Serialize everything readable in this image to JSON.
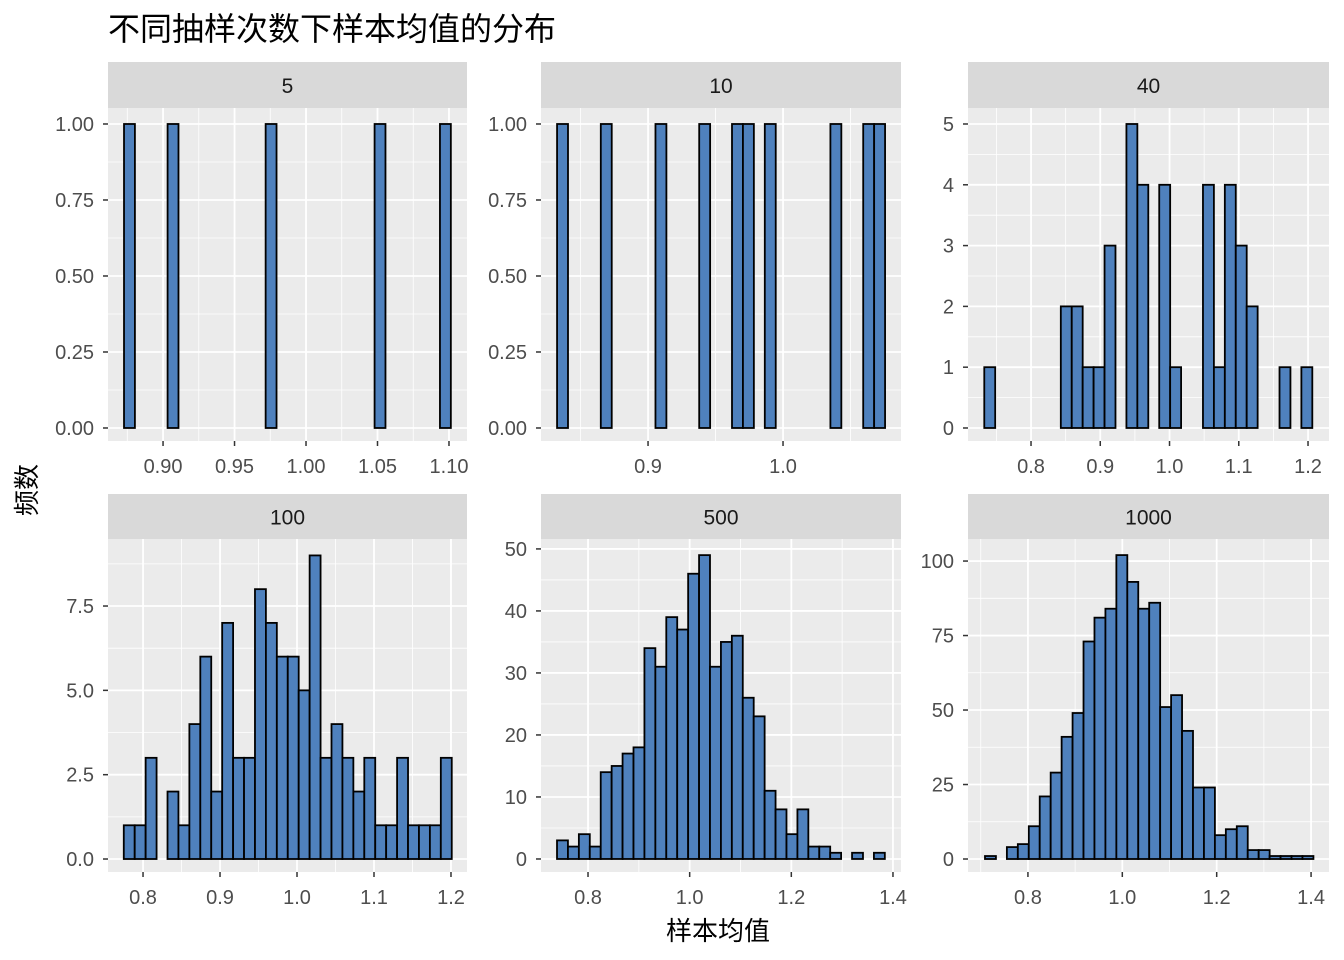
{
  "chart_data": {
    "type": "bar",
    "title": "不同抽样次数下样本均值的分布",
    "xlabel": "样本均值",
    "ylabel": "频数",
    "fill_color": "#4F81BD",
    "stroke_color": "#000000",
    "panel_background": "#EBEBEB",
    "strip_background": "#D9D9D9",
    "grid": true,
    "facets": [
      {
        "label": "5",
        "bin_start": 0.8727,
        "bin_width": 0.00762,
        "counts": [
          1,
          0,
          0,
          0,
          1,
          0,
          0,
          0,
          0,
          0,
          0,
          0,
          0,
          1,
          0,
          0,
          0,
          0,
          0,
          0,
          0,
          0,
          0,
          1,
          0,
          0,
          0,
          0,
          0,
          1
        ],
        "xlim": [
          0.8615,
          1.1126
        ],
        "ylim": [
          -0.0428,
          1.0526
        ],
        "xticks": [
          0.9,
          0.95,
          1.0,
          1.05,
          1.1
        ],
        "xtick_labels": [
          "0.90",
          "0.95",
          "1.00",
          "1.05",
          "1.10"
        ],
        "yticks": [
          0,
          0.25,
          0.5,
          0.75,
          1.0
        ],
        "ytick_labels": [
          "0.00",
          "0.25",
          "0.50",
          "0.75",
          "1.00"
        ]
      },
      {
        "label": "10",
        "bin_start": 0.8326,
        "bin_width": 0.0081,
        "counts": [
          1,
          0,
          0,
          0,
          1,
          0,
          0,
          0,
          0,
          1,
          0,
          0,
          0,
          1,
          0,
          0,
          1,
          1,
          0,
          1,
          0,
          0,
          0,
          0,
          0,
          1,
          0,
          0,
          1,
          1
        ],
        "xlim": [
          0.8207,
          1.0874
        ],
        "ylim": [
          -0.0428,
          1.0526
        ],
        "xticks": [
          0.9,
          1.0
        ],
        "xtick_labels": [
          "0.9",
          "1.0"
        ],
        "yticks": [
          0,
          0.25,
          0.5,
          0.75,
          1.0
        ],
        "ytick_labels": [
          "0.00",
          "0.25",
          "0.50",
          "0.75",
          "1.00"
        ]
      },
      {
        "label": "40",
        "bin_start": 0.7325,
        "bin_width": 0.01579,
        "counts": [
          1,
          0,
          0,
          0,
          0,
          0,
          0,
          2,
          2,
          1,
          1,
          3,
          0,
          5,
          4,
          0,
          4,
          1,
          0,
          0,
          4,
          1,
          4,
          3,
          2,
          0,
          0,
          1,
          0,
          1
        ],
        "xlim": [
          0.709,
          1.2303
        ],
        "ylim": [
          -0.214,
          5.263
        ],
        "xticks": [
          0.8,
          0.9,
          1.0,
          1.1,
          1.2
        ],
        "xtick_labels": [
          "0.8",
          "0.9",
          "1.0",
          "1.1",
          "1.2"
        ],
        "yticks": [
          0,
          1,
          2,
          3,
          4,
          5
        ],
        "ytick_labels": [
          "0",
          "1",
          "2",
          "3",
          "4",
          "5"
        ]
      },
      {
        "label": "100",
        "bin_start": 0.775,
        "bin_width": 0.0142,
        "counts": [
          1,
          1,
          3,
          0,
          2,
          1,
          4,
          6,
          2,
          7,
          3,
          3,
          8,
          7,
          6,
          6,
          5,
          9,
          3,
          4,
          3,
          2,
          3,
          1,
          1,
          3,
          1,
          1,
          1,
          3
        ],
        "xlim": [
          0.7545,
          1.2208
        ],
        "ylim": [
          -0.385,
          9.487
        ],
        "xticks": [
          0.8,
          0.9,
          1.0,
          1.1,
          1.2
        ],
        "xtick_labels": [
          "0.8",
          "0.9",
          "1.0",
          "1.1",
          "1.2"
        ],
        "yticks": [
          0,
          2.5,
          5,
          7.5
        ],
        "ytick_labels": [
          "0.0",
          "2.5",
          "5.0",
          "7.5"
        ]
      },
      {
        "label": "500",
        "bin_start": 0.739,
        "bin_width": 0.0215,
        "counts": [
          3,
          2,
          4,
          2,
          14,
          15,
          17,
          18,
          34,
          31,
          39,
          37,
          46,
          49,
          31,
          35,
          36,
          26,
          23,
          11,
          8,
          4,
          8,
          2,
          2,
          1,
          0,
          1,
          0,
          1
        ],
        "xlim": [
          0.7075,
          1.4158
        ],
        "ylim": [
          -2.1,
          51.6
        ],
        "xticks": [
          0.8,
          1.0,
          1.2,
          1.4
        ],
        "xtick_labels": [
          "0.8",
          "1.0",
          "1.2",
          "1.4"
        ],
        "yticks": [
          0,
          10,
          20,
          30,
          40,
          50
        ],
        "ytick_labels": [
          "0",
          "10",
          "20",
          "30",
          "40",
          "50"
        ]
      },
      {
        "label": "1000",
        "bin_start": 0.709,
        "bin_width": 0.0232,
        "counts": [
          1,
          0,
          4,
          5,
          11,
          21,
          29,
          41,
          49,
          73,
          81,
          84,
          102,
          93,
          84,
          86,
          51,
          55,
          43,
          24,
          24,
          8,
          10,
          11,
          3,
          3,
          1,
          1,
          1,
          1
        ],
        "xlim": [
          0.673,
          1.438
        ],
        "ylim": [
          -4.36,
          107.4
        ],
        "xticks": [
          0.8,
          1.0,
          1.2,
          1.4
        ],
        "xtick_labels": [
          "0.8",
          "1.0",
          "1.2",
          "1.4"
        ],
        "yticks": [
          0,
          25,
          50,
          75,
          100
        ],
        "ytick_labels": [
          "0",
          "25",
          "50",
          "75",
          "100"
        ]
      }
    ]
  }
}
